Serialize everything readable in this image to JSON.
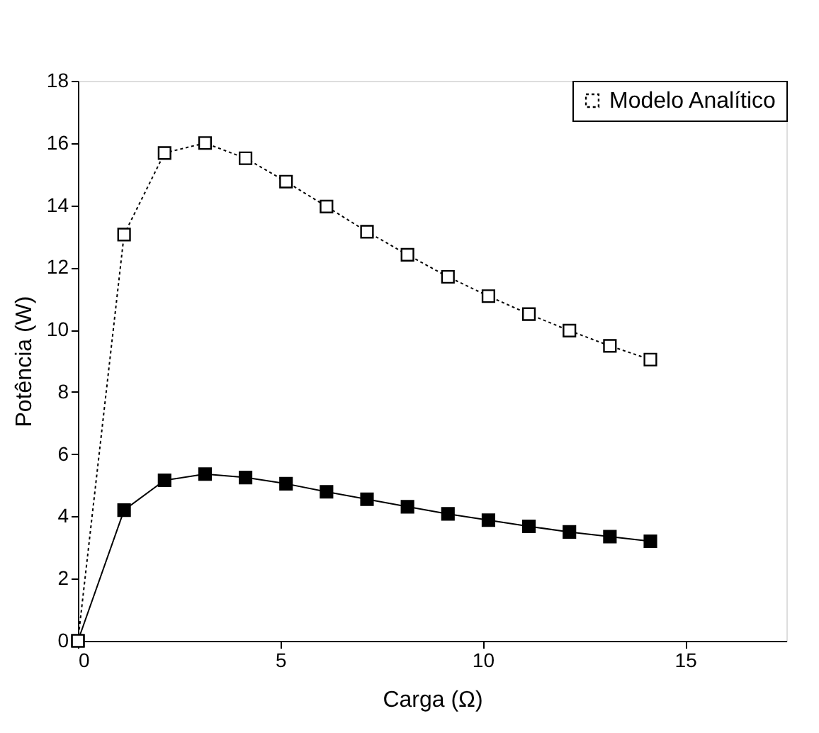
{
  "chart_data": {
    "type": "line",
    "xlabel": "Carga (Ω)",
    "ylabel": "Potência (W)",
    "x": [
      0,
      1.14,
      2.14,
      3.14,
      4.14,
      5.14,
      6.14,
      7.14,
      8.14,
      9.14,
      10.14,
      11.14,
      12.14,
      13.14,
      14.14
    ],
    "series": [
      {
        "color": "#000000",
        "line_style": "solid",
        "values": [
          0,
          4.2,
          5.16,
          5.36,
          5.25,
          5.05,
          4.79,
          4.55,
          4.31,
          4.08,
          3.88,
          3.68,
          3.5,
          3.35,
          3.2
        ]
      },
      {
        "name": "Modelo Analítico",
        "color": "#000000",
        "line_style": "dotted",
        "values": [
          0,
          13.06,
          15.68,
          16.0,
          15.51,
          14.76,
          13.96,
          13.15,
          12.41,
          11.7,
          11.08,
          10.5,
          9.97,
          9.48,
          9.04
        ]
      }
    ],
    "xlim": [
      0,
      17.5
    ],
    "xticks": [
      0,
      5,
      10,
      15
    ],
    "ylim": [
      0,
      18
    ],
    "yticks": [
      0,
      2,
      4,
      6,
      8,
      10,
      12,
      14,
      16,
      18
    ],
    "marker": "square",
    "grid": false,
    "legend": "top right"
  }
}
